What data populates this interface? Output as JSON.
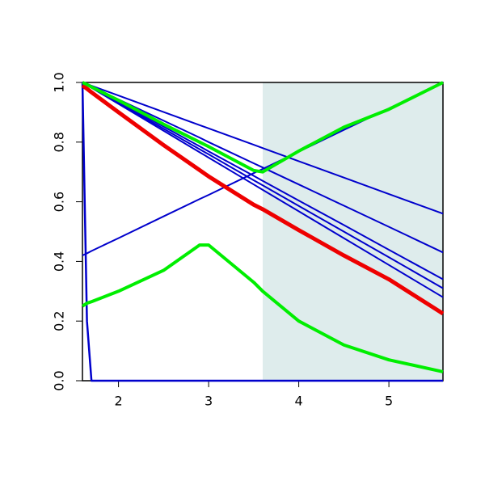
{
  "chart_data": {
    "type": "line",
    "x": [
      1.6,
      1.65,
      1.7,
      2,
      2.5,
      2.9,
      3,
      3.5,
      3.6,
      4,
      4.5,
      5,
      5.6
    ],
    "series": [
      {
        "color": "#0000cc",
        "line_width": 2,
        "values": [
          1,
          0.995,
          0.989,
          0.956,
          0.901,
          0.857,
          0.846,
          0.791,
          0.78,
          0.736,
          0.681,
          0.626,
          0.56
        ]
      },
      {
        "color": "#0000cc",
        "line_width": 2,
        "values": [
          1,
          0.993,
          0.986,
          0.943,
          0.872,
          0.815,
          0.8,
          0.729,
          0.715,
          0.658,
          0.587,
          0.516,
          0.43
        ]
      },
      {
        "color": "#0000cc",
        "line_width": 2,
        "values": [
          1,
          0.992,
          0.984,
          0.934,
          0.852,
          0.786,
          0.769,
          0.687,
          0.67,
          0.604,
          0.522,
          0.439,
          0.34
        ]
      },
      {
        "color": "#0000cc",
        "line_width": 2,
        "values": [
          1,
          0.991,
          0.983,
          0.931,
          0.845,
          0.776,
          0.759,
          0.672,
          0.655,
          0.586,
          0.5,
          0.414,
          0.31
        ]
      },
      {
        "color": "#0000cc",
        "line_width": 2,
        "values": [
          1,
          0.991,
          0.982,
          0.928,
          0.838,
          0.766,
          0.748,
          0.658,
          0.64,
          0.568,
          0.478,
          0.388,
          0.28
        ]
      },
      {
        "color": "#0000cc",
        "line_width": 2,
        "values": [
          0.42,
          0.427,
          0.435,
          0.478,
          0.551,
          0.609,
          0.623,
          0.696,
          0.71,
          0.768,
          0.841,
          0.913,
          1.0
        ]
      },
      {
        "color": "#0000cc",
        "line_width": 2.5,
        "values": [
          1.0,
          0.2,
          0,
          0,
          0,
          0,
          0,
          0,
          0,
          0,
          0,
          0,
          0
        ]
      },
      {
        "color": "#ee0000",
        "line_width": 5,
        "values": [
          0.99,
          0.979,
          0.967,
          0.9,
          0.79,
          0.706,
          0.685,
          0.59,
          0.575,
          0.505,
          0.42,
          0.34,
          0.225
        ]
      },
      {
        "color": "#00ee00",
        "line_width": 4,
        "values": [
          1,
          0.993,
          0.985,
          0.94,
          0.86,
          0.8,
          0.785,
          0.705,
          0.7,
          0.77,
          0.85,
          0.91,
          1.0
        ]
      },
      {
        "color": "#00ee00",
        "line_width": 4,
        "values": [
          0.25,
          0.26,
          0.265,
          0.3,
          0.37,
          0.455,
          0.455,
          0.33,
          0.3,
          0.2,
          0.12,
          0.07,
          0.03
        ]
      }
    ],
    "shade": {
      "xrange": [
        3.6,
        5.6
      ],
      "color": "#deecec"
    },
    "xlim": [
      1.6,
      5.6
    ],
    "ylim": [
      0,
      1
    ],
    "xticks": [
      2,
      3,
      4,
      5
    ],
    "yticks": [
      {
        "value": 0,
        "label": "0.0"
      },
      {
        "value": 0.2,
        "label": "0.2"
      },
      {
        "value": 0.4,
        "label": "0.4"
      },
      {
        "value": 0.6,
        "label": "0.6"
      },
      {
        "value": 0.8,
        "label": "0.8"
      },
      {
        "value": 1,
        "label": "1.0"
      }
    ]
  }
}
